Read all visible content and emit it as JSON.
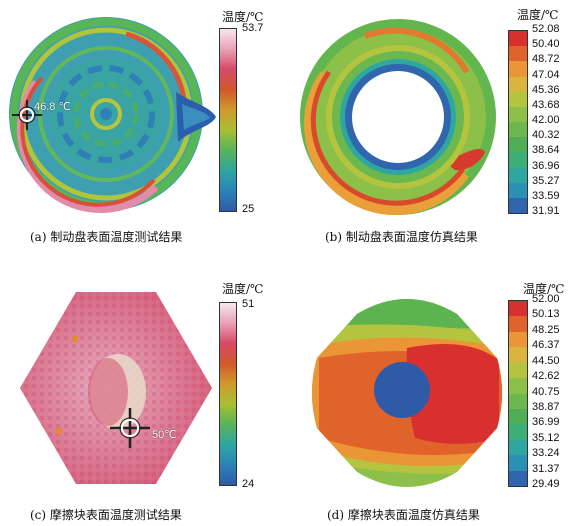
{
  "panels": {
    "a": {
      "caption": "(a) 制动盘表面温度测试结果",
      "legend_title": "温度/℃",
      "legend_max": "53.7",
      "legend_min": "25",
      "annotation": "46.8 ℃",
      "colormap": [
        "#f5e8ee",
        "#e9a0b5",
        "#d64a66",
        "#d2582c",
        "#cf9a2a",
        "#a7c033",
        "#58b35a",
        "#2fa7a0",
        "#2a84b8",
        "#2f5aa5"
      ]
    },
    "b": {
      "caption": "(b) 制动盘表面温度仿真结果",
      "legend_title": "温度/℃",
      "levels": [
        "52.08",
        "50.40",
        "48.72",
        "47.04",
        "45.36",
        "43.68",
        "42.00",
        "40.32",
        "38.64",
        "36.96",
        "35.27",
        "33.59",
        "31.91"
      ],
      "colors": [
        "#d8302f",
        "#e0632b",
        "#ea9536",
        "#d8b53c",
        "#b5c43e",
        "#8dc04a",
        "#6ab84e",
        "#4fae54",
        "#3eae78",
        "#2fa7a0",
        "#2b90b4",
        "#2f66ad"
      ]
    },
    "c": {
      "caption": "(c) 摩擦块表面温度测试结果",
      "legend_title": "温度/℃",
      "legend_max": "51",
      "legend_min": "24",
      "annotation": "50℃",
      "colormap": [
        "#f5e8ee",
        "#e9a0b5",
        "#d64a66",
        "#d2582c",
        "#cf9a2a",
        "#a7c033",
        "#58b35a",
        "#2fa7a0",
        "#2a84b8",
        "#2f5aa5"
      ]
    },
    "d": {
      "caption": "(d) 摩擦块表面温度仿真结果",
      "legend_title": "温度/℃",
      "levels": [
        "52.00",
        "50.13",
        "48.25",
        "46.37",
        "44.50",
        "42.62",
        "40.75",
        "38.87",
        "36.99",
        "35.12",
        "33.24",
        "31.37",
        "29.49"
      ],
      "colors": [
        "#d8302f",
        "#e0632b",
        "#ea9536",
        "#d8b53c",
        "#b5c43e",
        "#8dc04a",
        "#6ab84e",
        "#4fae54",
        "#3eae78",
        "#2fa7a0",
        "#2b90b4",
        "#2f66ad"
      ]
    }
  }
}
